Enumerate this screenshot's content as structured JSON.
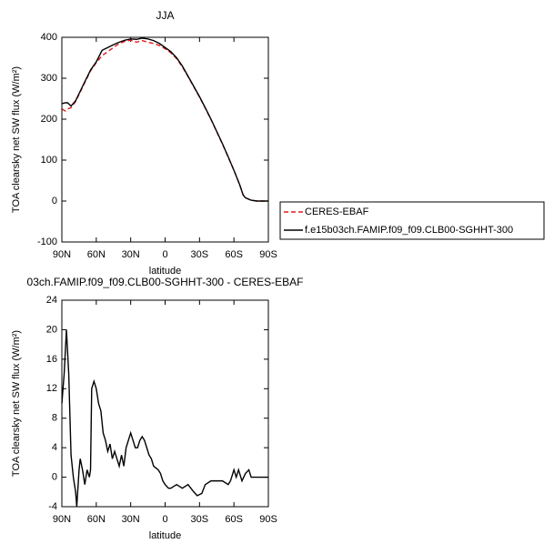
{
  "chart_data": [
    {
      "type": "line",
      "title": "JJA",
      "x_label": "latitude",
      "y_label": "TOA clearsky net SW flux (W/m²)",
      "xlim": [
        90,
        -90
      ],
      "xticks": [
        {
          "value": 90,
          "label": "90N"
        },
        {
          "value": 60,
          "label": "60N"
        },
        {
          "value": 30,
          "label": "30N"
        },
        0,
        {
          "value": -30,
          "label": "30S"
        },
        {
          "value": -60,
          "label": "60S"
        },
        {
          "value": -90,
          "label": "90S"
        }
      ],
      "ylim": [
        -100,
        400
      ],
      "yticks": [
        -100,
        0,
        100,
        200,
        300,
        400
      ],
      "x": [
        90,
        87,
        85,
        82,
        78,
        72,
        65,
        60,
        55,
        50,
        45,
        40,
        35,
        30,
        25,
        20,
        15,
        10,
        5,
        0,
        -5,
        -10,
        -15,
        -20,
        -25,
        -30,
        -35,
        -40,
        -45,
        -50,
        -55,
        -60,
        -65,
        -68,
        -70,
        -75,
        -80,
        -85,
        -90
      ],
      "series": [
        {
          "name": "CERES-EBAF",
          "color": "#e41a1c",
          "dash": true,
          "values": [
            225,
            220,
            225,
            228,
            243,
            278,
            318,
            338,
            355,
            365,
            375,
            385,
            390,
            393,
            388,
            392,
            388,
            385,
            380,
            372,
            362,
            348,
            328,
            304,
            279,
            254,
            227,
            199,
            169,
            139,
            107,
            75,
            40,
            15,
            8,
            2,
            0,
            0,
            0
          ]
        },
        {
          "name": "f.e15b03ch.FAMIP.f09_f09.CLB00-SGHHT-300",
          "color": "#000000",
          "dash": false,
          "values": [
            238,
            240,
            240,
            232,
            245,
            280,
            320,
            340,
            368,
            375,
            382,
            388,
            393,
            396,
            395,
            398,
            396,
            392,
            385,
            375,
            365,
            350,
            330,
            305,
            280,
            255,
            228,
            200,
            170,
            140,
            108,
            75,
            40,
            15,
            8,
            2,
            0,
            0,
            0
          ]
        }
      ]
    },
    {
      "type": "line",
      "title": "03ch.FAMIP.f09_f09.CLB00-SGHHT-300 - CERES-EBAF",
      "x_label": "latitude",
      "y_label": "TOA clearsky net SW flux (W/m²)",
      "xlim": [
        90,
        -90
      ],
      "xticks": [
        {
          "value": 90,
          "label": "90N"
        },
        {
          "value": 60,
          "label": "60N"
        },
        {
          "value": 30,
          "label": "30N"
        },
        0,
        {
          "value": -30,
          "label": "30S"
        },
        {
          "value": -60,
          "label": "60S"
        },
        {
          "value": -90,
          "label": "90S"
        }
      ],
      "ylim": [
        -4,
        24
      ],
      "yticks": [
        -4,
        0,
        4,
        8,
        12,
        16,
        20,
        24
      ],
      "x": [
        90,
        88,
        86,
        84,
        82,
        80,
        78,
        77,
        75,
        74,
        72,
        70,
        68,
        66,
        65,
        64,
        62,
        60,
        58,
        56,
        54,
        52,
        50,
        48,
        46,
        44,
        42,
        40,
        38,
        36,
        34,
        32,
        30,
        28,
        26,
        24,
        22,
        20,
        18,
        16,
        14,
        12,
        10,
        6,
        4,
        2,
        0,
        -3,
        -5,
        -10,
        -15,
        -20,
        -25,
        -28,
        -32,
        -35,
        -40,
        -45,
        -50,
        -55,
        -57,
        -60,
        -62,
        -64,
        -67,
        -70,
        -73,
        -75,
        -80,
        -85,
        -90
      ],
      "series": [
        {
          "color": "#000000",
          "dash": false,
          "values": [
            10,
            14,
            20,
            14,
            3,
            0,
            -2,
            -4,
            1,
            2.5,
            1,
            -1,
            1,
            0,
            1,
            12,
            13,
            12,
            10,
            9,
            6,
            5,
            3.5,
            4.5,
            2.5,
            3.5,
            2.5,
            1.5,
            3,
            1.5,
            4,
            5,
            6,
            5,
            4,
            4,
            5,
            5.5,
            5,
            4,
            3,
            2.5,
            1.5,
            1,
            0.5,
            -0.5,
            -1,
            -1.5,
            -1.5,
            -1,
            -1.5,
            -1,
            -2,
            -2.5,
            -2.2,
            -1,
            -0.5,
            -0.5,
            -0.5,
            -1,
            -0.5,
            1,
            0,
            1,
            -0.5,
            0.5,
            1,
            0,
            0,
            0,
            0
          ]
        }
      ]
    }
  ]
}
